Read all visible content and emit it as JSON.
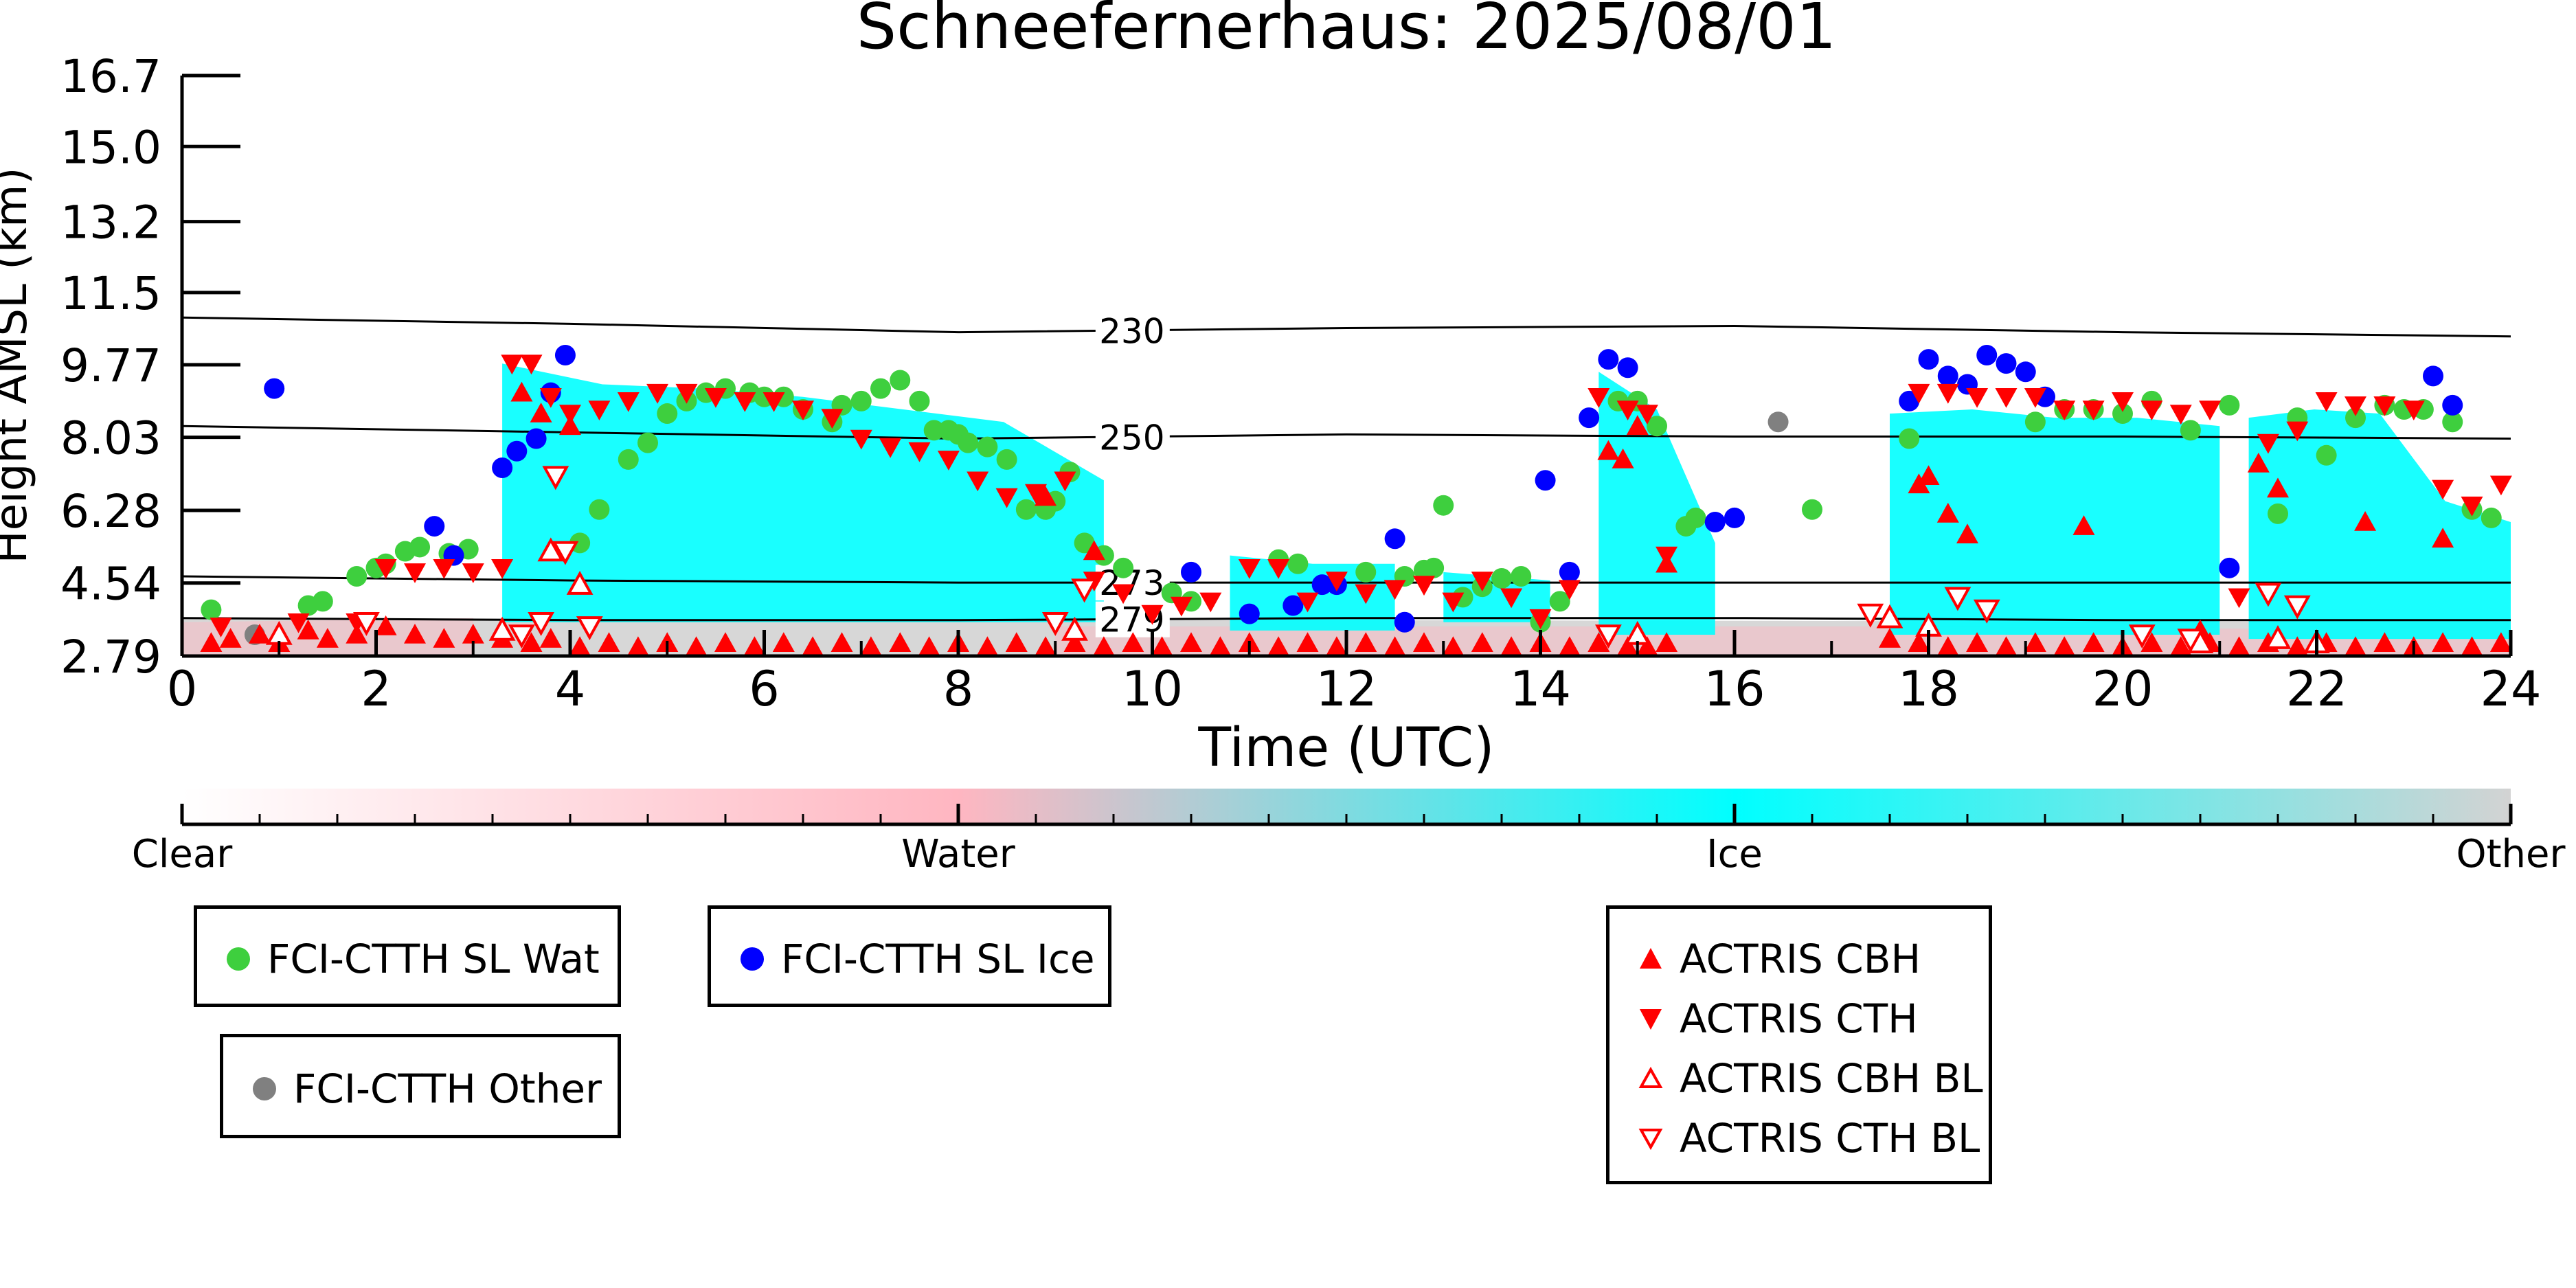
{
  "title": "Schneefernerhaus: 2025/08/01",
  "chart_data": {
    "type": "scatter",
    "title": "Schneefernerhaus: 2025/08/01",
    "xlabel": "Time (UTC)",
    "ylabel": "Height AMSL (km)",
    "xlim": [
      0,
      24
    ],
    "ylim": [
      2.79,
      16.7
    ],
    "xticks": [
      0,
      2,
      4,
      6,
      8,
      10,
      12,
      14,
      16,
      18,
      20,
      22,
      24
    ],
    "yticks": [
      2.79,
      4.54,
      6.28,
      8.03,
      9.77,
      11.5,
      13.2,
      15.0,
      16.7
    ],
    "ytick_labels": [
      "2.79",
      "4.54",
      "6.28",
      "8.03",
      "9.77",
      "11.5",
      "13.2",
      "15.0",
      "16.7"
    ],
    "grid": false,
    "isotherms": [
      {
        "label": "230",
        "x": [
          0,
          4,
          8,
          12,
          16,
          20,
          24
        ],
        "y": [
          10.9,
          10.75,
          10.55,
          10.65,
          10.7,
          10.55,
          10.45
        ]
      },
      {
        "label": "250",
        "x": [
          0,
          4,
          8,
          12,
          16,
          20,
          24
        ],
        "y": [
          8.3,
          8.15,
          8.0,
          8.1,
          8.05,
          8.05,
          8.0
        ]
      },
      {
        "label": "273",
        "x": [
          0,
          4,
          8,
          12,
          16,
          20,
          24
        ],
        "y": [
          4.7,
          4.6,
          4.55,
          4.55,
          4.55,
          4.55,
          4.55
        ]
      },
      {
        "label": "279",
        "x": [
          0,
          4,
          8,
          12,
          16,
          20,
          24
        ],
        "y": [
          3.7,
          3.65,
          3.65,
          3.7,
          3.7,
          3.65,
          3.65
        ]
      }
    ],
    "cloud_regions": [
      {
        "type": "Ice",
        "x0": 3.3,
        "x1": 9.5,
        "top": [
          9.8,
          9.3,
          9.2,
          9.0,
          8.7,
          8.4,
          7.0
        ],
        "base": 3.6
      },
      {
        "type": "Ice",
        "x0": 10.8,
        "x1": 12.5,
        "top": [
          5.2,
          5.0,
          5.0
        ],
        "base": 3.4
      },
      {
        "type": "Ice",
        "x0": 13.0,
        "x1": 14.1,
        "top": [
          4.8,
          4.6
        ],
        "base": 3.6
      },
      {
        "type": "Ice",
        "x0": 14.6,
        "x1": 15.8,
        "top": [
          9.6,
          8.7,
          5.5
        ],
        "base": 3.3
      },
      {
        "type": "Ice",
        "x0": 17.6,
        "x1": 21.0,
        "top": [
          8.6,
          8.7,
          8.5,
          8.5,
          8.3
        ],
        "base": 3.3
      },
      {
        "type": "Ice",
        "x0": 21.3,
        "x1": 24.0,
        "top": [
          8.5,
          8.7,
          8.6,
          6.5,
          6.0
        ],
        "base": 3.2
      },
      {
        "type": "Water",
        "x0": 0.0,
        "x1": 3.0,
        "top": [
          3.6,
          3.7
        ],
        "base": 2.79
      },
      {
        "type": "Water",
        "x0": 9.0,
        "x1": 18.0,
        "top": [
          3.5,
          3.5
        ],
        "base": 2.79
      },
      {
        "type": "Water",
        "x0": 18.0,
        "x1": 24.0,
        "top": [
          3.5,
          3.4
        ],
        "base": 2.79
      },
      {
        "type": "Other",
        "x0": 0.0,
        "x1": 24.0,
        "top": [
          3.7,
          3.6
        ],
        "base": 2.79
      }
    ],
    "series": [
      {
        "name": "FCI-CTTH SL Wat",
        "marker": "circle",
        "color": "#3ecf3e",
        "x": [
          0.3,
          1.3,
          1.45,
          1.8,
          2.0,
          2.1,
          2.3,
          2.45,
          2.75,
          2.95,
          4.1,
          4.3,
          4.6,
          4.8,
          5.0,
          5.2,
          5.4,
          5.6,
          5.85,
          6.0,
          6.2,
          6.4,
          6.7,
          6.8,
          7.0,
          7.2,
          7.4,
          7.6,
          7.75,
          7.9,
          8.0,
          8.1,
          8.3,
          8.5,
          8.7,
          8.9,
          9.0,
          9.15,
          9.3,
          9.5,
          9.7,
          10.2,
          10.4,
          11.3,
          11.5,
          12.2,
          12.6,
          12.8,
          12.9,
          13.0,
          13.2,
          13.4,
          13.6,
          13.8,
          14.0,
          14.2,
          14.8,
          15.0,
          15.2,
          15.5,
          15.6,
          16.8,
          17.8,
          19.1,
          19.4,
          19.7,
          20.0,
          20.3,
          20.7,
          21.1,
          21.6,
          21.8,
          22.1,
          22.4,
          22.7,
          22.9,
          23.1,
          23.4,
          23.6,
          23.8
        ],
        "y": [
          3.9,
          4.0,
          4.1,
          4.7,
          4.9,
          5.0,
          5.3,
          5.4,
          5.25,
          5.35,
          5.5,
          6.3,
          7.5,
          7.9,
          8.6,
          8.9,
          9.1,
          9.2,
          9.1,
          9.0,
          9.0,
          8.7,
          8.4,
          8.8,
          8.9,
          9.2,
          9.4,
          8.9,
          8.2,
          8.2,
          8.1,
          7.9,
          7.8,
          7.5,
          6.3,
          6.3,
          6.5,
          7.2,
          5.5,
          5.2,
          4.9,
          4.3,
          4.1,
          5.1,
          5.0,
          4.8,
          4.7,
          4.85,
          4.9,
          6.4,
          4.2,
          4.45,
          4.65,
          4.7,
          3.6,
          4.1,
          8.9,
          8.9,
          8.3,
          5.9,
          6.1,
          6.3,
          8.0,
          8.4,
          8.7,
          8.7,
          8.6,
          8.9,
          8.2,
          8.8,
          6.2,
          8.5,
          7.6,
          8.5,
          8.8,
          8.7,
          8.7,
          8.4,
          6.3,
          6.1
        ]
      },
      {
        "name": "FCI-CTTH SL Ice",
        "marker": "circle",
        "color": "#0000ff",
        "x": [
          0.95,
          2.6,
          2.8,
          3.3,
          3.45,
          3.65,
          3.8,
          3.95,
          10.4,
          11.0,
          11.45,
          11.75,
          11.9,
          12.5,
          12.6,
          14.05,
          14.3,
          14.5,
          14.7,
          14.9,
          15.8,
          16.0,
          17.8,
          18.0,
          18.2,
          18.4,
          18.6,
          18.8,
          19.0,
          19.2,
          21.1,
          23.2,
          23.4
        ],
        "y": [
          9.2,
          5.9,
          5.2,
          7.3,
          7.7,
          8.0,
          9.1,
          10.0,
          4.8,
          3.8,
          4.0,
          4.5,
          4.5,
          5.6,
          3.6,
          7.0,
          4.8,
          8.5,
          9.9,
          9.7,
          6.0,
          6.1,
          8.9,
          9.9,
          9.5,
          9.3,
          10.0,
          9.8,
          9.6,
          9.0,
          4.9,
          9.5,
          8.8
        ]
      },
      {
        "name": "FCI-CTTH Other",
        "marker": "circle",
        "color": "#808080",
        "x": [
          0.75,
          16.45
        ],
        "y": [
          3.3,
          8.4
        ]
      },
      {
        "name": "ACTRIS CBH",
        "marker": "triangle-up",
        "color": "#ff0000",
        "filled": true,
        "x": [
          0.3,
          0.5,
          0.8,
          1.0,
          1.3,
          1.5,
          1.8,
          2.1,
          2.4,
          2.7,
          3.0,
          3.3,
          3.6,
          3.8,
          4.1,
          4.4,
          4.7,
          5.0,
          5.3,
          5.6,
          5.9,
          6.2,
          6.5,
          6.8,
          7.1,
          7.4,
          7.7,
          8.0,
          8.3,
          8.6,
          8.9,
          9.2,
          9.5,
          9.8,
          10.1,
          10.4,
          10.7,
          11.0,
          11.3,
          11.6,
          11.9,
          12.2,
          12.5,
          12.8,
          13.1,
          13.4,
          13.7,
          14.0,
          14.3,
          14.6,
          14.9,
          15.1,
          15.3,
          17.6,
          17.9,
          18.2,
          18.5,
          18.8,
          19.1,
          19.4,
          19.7,
          20.0,
          20.3,
          20.6,
          20.9,
          21.2,
          21.5,
          21.8,
          22.1,
          22.4,
          22.7,
          23.0,
          23.3,
          23.6,
          23.9,
          3.5,
          3.7,
          4.0,
          8.9,
          9.4,
          14.7,
          14.85,
          15.0,
          15.3,
          17.9,
          18.0,
          18.2,
          18.4,
          19.6,
          20.8,
          21.4,
          21.6,
          22.5,
          23.3
        ],
        "y": [
          3.1,
          3.2,
          3.3,
          3.1,
          3.4,
          3.2,
          3.3,
          3.5,
          3.3,
          3.2,
          3.3,
          3.2,
          3.1,
          3.2,
          3.0,
          3.1,
          3.0,
          3.1,
          3.0,
          3.1,
          3.0,
          3.1,
          3.0,
          3.1,
          3.0,
          3.1,
          3.0,
          3.1,
          3.0,
          3.1,
          3.0,
          3.1,
          3.0,
          3.1,
          3.0,
          3.1,
          3.0,
          3.1,
          3.0,
          3.1,
          3.0,
          3.1,
          3.0,
          3.1,
          3.0,
          3.1,
          3.0,
          3.1,
          3.0,
          3.1,
          3.0,
          3.0,
          3.1,
          3.2,
          3.1,
          3.0,
          3.1,
          3.0,
          3.1,
          3.0,
          3.1,
          3.0,
          3.1,
          3.0,
          3.1,
          3.0,
          3.1,
          3.0,
          3.1,
          3.0,
          3.1,
          3.0,
          3.1,
          3.0,
          3.1,
          9.1,
          8.6,
          8.3,
          6.6,
          5.3,
          7.7,
          7.5,
          8.3,
          5.0,
          6.9,
          7.1,
          6.2,
          5.7,
          5.9,
          3.4,
          7.4,
          6.8,
          6.0,
          5.6
        ]
      },
      {
        "name": "ACTRIS CTH",
        "marker": "triangle-down",
        "color": "#ff0000",
        "filled": true,
        "x": [
          0.4,
          1.2,
          1.8,
          2.1,
          2.4,
          2.7,
          3.0,
          3.3,
          3.4,
          3.6,
          3.8,
          4.0,
          4.3,
          4.6,
          4.9,
          5.2,
          5.5,
          5.8,
          6.1,
          6.4,
          6.7,
          7.0,
          7.3,
          7.6,
          7.9,
          8.2,
          8.5,
          8.8,
          9.1,
          9.4,
          9.7,
          10.0,
          10.3,
          10.6,
          11.0,
          11.3,
          11.6,
          11.9,
          12.2,
          12.5,
          12.8,
          13.1,
          13.4,
          13.7,
          14.0,
          14.3,
          14.6,
          14.9,
          15.1,
          15.3,
          17.9,
          18.2,
          18.5,
          18.8,
          19.1,
          19.4,
          19.7,
          20.0,
          20.3,
          20.6,
          20.9,
          21.2,
          21.5,
          21.8,
          22.1,
          22.4,
          22.7,
          23.0,
          23.3,
          23.6,
          23.9
        ],
        "y": [
          3.5,
          3.6,
          3.6,
          4.9,
          4.8,
          4.9,
          4.8,
          4.9,
          9.8,
          9.8,
          9.0,
          8.6,
          8.7,
          8.9,
          9.1,
          9.1,
          9.0,
          8.9,
          8.9,
          8.7,
          8.5,
          8.0,
          7.8,
          7.7,
          7.5,
          7.0,
          6.6,
          6.7,
          7.0,
          4.6,
          4.3,
          3.8,
          4.0,
          4.1,
          4.9,
          4.9,
          4.1,
          4.6,
          4.3,
          4.4,
          4.5,
          4.1,
          4.6,
          4.2,
          3.7,
          4.4,
          9.0,
          8.7,
          8.6,
          5.2,
          9.1,
          9.1,
          9.0,
          9.0,
          9.0,
          8.7,
          8.7,
          8.9,
          8.7,
          8.6,
          8.7,
          4.2,
          7.9,
          8.2,
          8.9,
          8.8,
          8.8,
          8.7,
          6.8,
          6.4,
          6.9
        ]
      },
      {
        "name": "ACTRIS CBH BL",
        "marker": "triangle-up",
        "color": "#ff0000",
        "filled": false,
        "x": [
          1.0,
          3.3,
          3.8,
          4.1,
          9.2,
          15.0,
          17.6,
          18.0,
          20.8,
          21.6,
          22.0
        ],
        "y": [
          3.3,
          3.4,
          5.3,
          4.5,
          3.4,
          3.3,
          3.7,
          3.5,
          3.1,
          3.2,
          3.1
        ]
      },
      {
        "name": "ACTRIS CTH BL",
        "marker": "triangle-down",
        "color": "#ff0000",
        "filled": false,
        "x": [
          1.9,
          3.5,
          3.7,
          3.85,
          3.95,
          4.2,
          9.0,
          9.3,
          14.7,
          17.4,
          18.3,
          18.6,
          20.2,
          20.7,
          21.5,
          21.8
        ],
        "y": [
          3.6,
          3.3,
          3.6,
          7.1,
          5.3,
          3.5,
          3.6,
          4.4,
          3.3,
          3.8,
          4.2,
          3.9,
          3.3,
          3.2,
          4.3,
          4.0
        ]
      }
    ],
    "colorbar": {
      "labels": [
        "Clear",
        "Water",
        "Ice",
        "Other"
      ],
      "colors": {
        "Clear": "#ffffff",
        "Water": "#ffb6c1",
        "Ice": "#00ffff",
        "Other": "#d3d3d3"
      }
    },
    "legends": [
      {
        "entries": [
          "FCI-CTTH SL Wat"
        ]
      },
      {
        "entries": [
          "FCI-CTTH SL Ice"
        ]
      },
      {
        "entries": [
          "FCI-CTTH Other"
        ]
      },
      {
        "entries": [
          "ACTRIS CBH",
          "ACTRIS CTH",
          "ACTRIS CBH BL",
          "ACTRIS CTH BL"
        ]
      }
    ]
  }
}
